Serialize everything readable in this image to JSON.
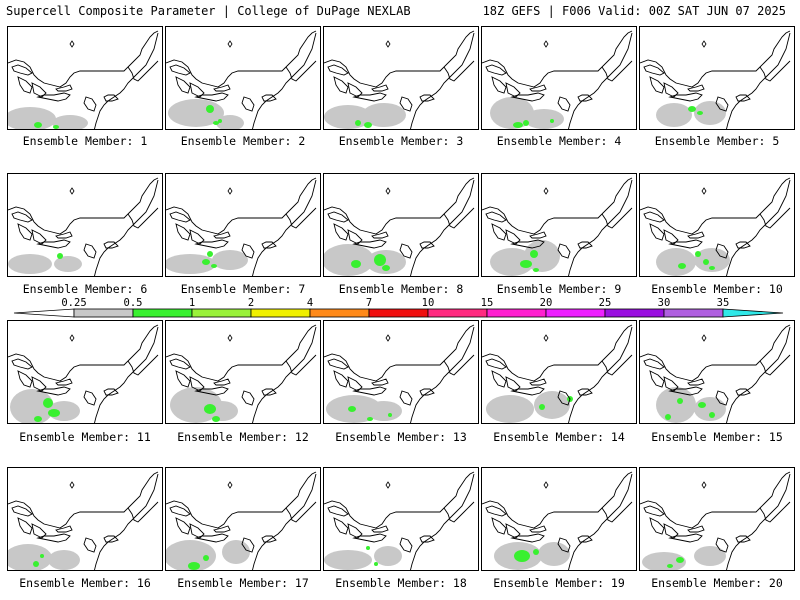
{
  "header": {
    "left": "Supercell Composite Parameter | College of DuPage NEXLAB",
    "right": "18Z GEFS | F006 Valid: 00Z SAT JUN 07 2025"
  },
  "legend": {
    "ticks": [
      "0.25",
      "0.5",
      "1",
      "2",
      "4",
      "7",
      "10",
      "15",
      "20",
      "25",
      "30",
      "35"
    ],
    "colors": [
      "#c8c8c8",
      "#39f030",
      "#9af23a",
      "#f0f000",
      "#ff8a1a",
      "#f01010",
      "#ff2a80",
      "#ff20d0",
      "#ee20ff",
      "#9a10e0",
      "#b060e0",
      "#30e8e8"
    ]
  },
  "panels": [
    {
      "label": "Ensemble Member: 1"
    },
    {
      "label": "Ensemble Member: 2"
    },
    {
      "label": "Ensemble Member: 3"
    },
    {
      "label": "Ensemble Member: 4"
    },
    {
      "label": "Ensemble Member: 5"
    },
    {
      "label": "Ensemble Member: 6"
    },
    {
      "label": "Ensemble Member: 7"
    },
    {
      "label": "Ensemble Member: 8"
    },
    {
      "label": "Ensemble Member: 9"
    },
    {
      "label": "Ensemble Member: 10"
    },
    {
      "label": "Ensemble Member: 11"
    },
    {
      "label": "Ensemble Member: 12"
    },
    {
      "label": "Ensemble Member: 13"
    },
    {
      "label": "Ensemble Member: 14"
    },
    {
      "label": "Ensemble Member: 15"
    },
    {
      "label": "Ensemble Member: 16"
    },
    {
      "label": "Ensemble Member: 17"
    },
    {
      "label": "Ensemble Member: 18"
    },
    {
      "label": "Ensemble Member: 19"
    },
    {
      "label": "Ensemble Member: 20"
    }
  ]
}
